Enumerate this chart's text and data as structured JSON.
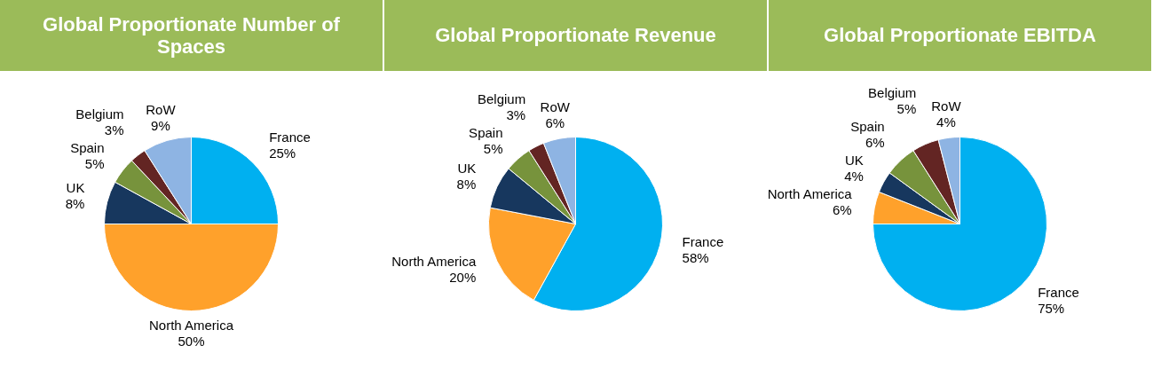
{
  "chart_data": [
    {
      "type": "pie",
      "title": "Global Proportionate Number of Spaces",
      "categories": [
        "France",
        "North America",
        "UK",
        "Spain",
        "Belgium",
        "RoW"
      ],
      "values": [
        25,
        50,
        8,
        5,
        3,
        9
      ],
      "value_labels": [
        "25%",
        "50%",
        "8%",
        "5%",
        "3%",
        "9%"
      ],
      "colors": [
        "#00b0f0",
        "#ffa12b",
        "#17375e",
        "#77933c",
        "#632523",
        "#8eb4e3"
      ]
    },
    {
      "type": "pie",
      "title": "Global Proportionate Revenue",
      "categories": [
        "France",
        "North America",
        "UK",
        "Spain",
        "Belgium",
        "RoW"
      ],
      "values": [
        58,
        20,
        8,
        5,
        3,
        6
      ],
      "value_labels": [
        "58%",
        "20%",
        "8%",
        "5%",
        "3%",
        "6%"
      ],
      "colors": [
        "#00b0f0",
        "#ffa12b",
        "#17375e",
        "#77933c",
        "#632523",
        "#8eb4e3"
      ]
    },
    {
      "type": "pie",
      "title": "Global Proportionate EBITDA",
      "categories": [
        "France",
        "North America",
        "UK",
        "Spain",
        "Belgium",
        "RoW"
      ],
      "values": [
        75,
        6,
        4,
        6,
        5,
        4
      ],
      "value_labels": [
        "75%",
        "6%",
        "4%",
        "6%",
        "5%",
        "4%"
      ],
      "colors": [
        "#00b0f0",
        "#ffa12b",
        "#17375e",
        "#77933c",
        "#632523",
        "#8eb4e3"
      ]
    }
  ]
}
